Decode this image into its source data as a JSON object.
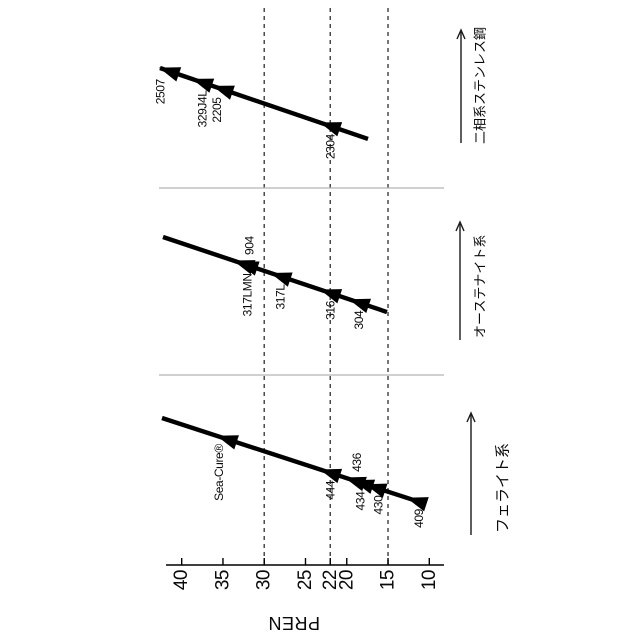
{
  "chart_data": {
    "type": "line",
    "ylabel": "PREN",
    "orientation": "figure_rotated_90deg_ccw",
    "axis_ticks": [
      "40",
      "35",
      "30",
      "25",
      "22",
      "20",
      "15",
      "10"
    ],
    "axis_range": [
      10,
      42.5
    ],
    "threshold_gridlines": [
      30,
      22,
      15
    ],
    "grid": "dashed lines at PREN thresholds 30, 22, 15",
    "legend_position": "none",
    "series": [
      {
        "name": "二相系ステンレス鋼",
        "points": [
          {
            "label": "2507",
            "pren": 41.5
          },
          {
            "label": "329J4L",
            "pren": 37.5
          },
          {
            "label": "2205",
            "pren": 35
          },
          {
            "label": "2304",
            "pren": 22
          }
        ]
      },
      {
        "name": "オーステナイト系",
        "points": [
          {
            "label": "904",
            "pren": 32.5
          },
          {
            "label": "317LMN",
            "pren": 32
          },
          {
            "label": "317L",
            "pren": 28
          },
          {
            "label": "316",
            "pren": 22
          },
          {
            "label": "304",
            "pren": 18.5
          }
        ]
      },
      {
        "name": "フェライト系",
        "points": [
          {
            "label": "Sea-Cure®",
            "pren": 34.5
          },
          {
            "label": "444",
            "pren": 22
          },
          {
            "label": "436",
            "pren": 19
          },
          {
            "label": "434",
            "pren": 18
          },
          {
            "label": "430",
            "pren": 16.5
          },
          {
            "label": "409",
            "pren": 11.5
          }
        ]
      }
    ]
  }
}
